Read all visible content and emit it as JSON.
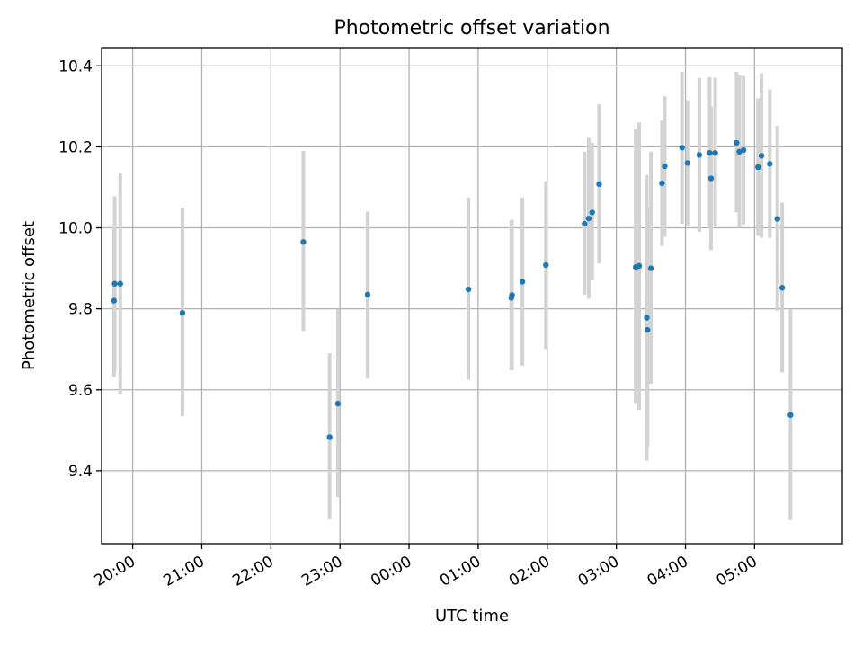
{
  "chart_data": {
    "type": "scatter",
    "title": "Photometric offset variation",
    "xlabel": "UTC time",
    "ylabel": "Photometric offset",
    "x_unit": "hours since 19:00 UTC",
    "xlim": [
      0.55,
      11.27
    ],
    "ylim": [
      9.22,
      10.445
    ],
    "x_ticks": [
      {
        "value": 1,
        "label": "20:00"
      },
      {
        "value": 2,
        "label": "21:00"
      },
      {
        "value": 3,
        "label": "22:00"
      },
      {
        "value": 4,
        "label": "23:00"
      },
      {
        "value": 5,
        "label": "00:00"
      },
      {
        "value": 6,
        "label": "01:00"
      },
      {
        "value": 7,
        "label": "02:00"
      },
      {
        "value": 8,
        "label": "03:00"
      },
      {
        "value": 9,
        "label": "04:00"
      },
      {
        "value": 10,
        "label": "05:00"
      }
    ],
    "y_ticks": [
      {
        "value": 9.4,
        "label": "9.4"
      },
      {
        "value": 9.6,
        "label": "9.6"
      },
      {
        "value": 9.8,
        "label": "9.8"
      },
      {
        "value": 10.0,
        "label": "10.0"
      },
      {
        "value": 10.2,
        "label": "10.2"
      },
      {
        "value": 10.4,
        "label": "10.4"
      }
    ],
    "grid": true,
    "point_color": "#1f77b4",
    "error_color": "#d3d3d3",
    "series": [
      {
        "name": "Photometric offset",
        "points": [
          {
            "x": 0.73,
            "y": 9.82,
            "lo": 9.632,
            "hi": 10.008
          },
          {
            "x": 0.74,
            "y": 9.862,
            "lo": 9.645,
            "hi": 10.078
          },
          {
            "x": 0.82,
            "y": 9.862,
            "lo": 9.59,
            "hi": 10.135
          },
          {
            "x": 1.72,
            "y": 9.79,
            "lo": 9.535,
            "hi": 10.05
          },
          {
            "x": 3.47,
            "y": 9.965,
            "lo": 9.745,
            "hi": 10.19
          },
          {
            "x": 3.85,
            "y": 9.483,
            "lo": 9.28,
            "hi": 9.69
          },
          {
            "x": 3.97,
            "y": 9.566,
            "lo": 9.335,
            "hi": 9.8
          },
          {
            "x": 4.4,
            "y": 9.835,
            "lo": 9.628,
            "hi": 10.04
          },
          {
            "x": 5.86,
            "y": 9.848,
            "lo": 9.625,
            "hi": 10.075
          },
          {
            "x": 6.48,
            "y": 9.827,
            "lo": 9.648,
            "hi": 10.018
          },
          {
            "x": 6.49,
            "y": 9.834,
            "lo": 9.648,
            "hi": 10.02
          },
          {
            "x": 6.64,
            "y": 9.867,
            "lo": 9.66,
            "hi": 10.075
          },
          {
            "x": 6.98,
            "y": 9.908,
            "lo": 9.7,
            "hi": 10.115
          },
          {
            "x": 7.54,
            "y": 10.01,
            "lo": 9.835,
            "hi": 10.188
          },
          {
            "x": 7.6,
            "y": 10.023,
            "lo": 9.825,
            "hi": 10.222
          },
          {
            "x": 7.65,
            "y": 10.038,
            "lo": 9.87,
            "hi": 10.21
          },
          {
            "x": 7.75,
            "y": 10.108,
            "lo": 9.912,
            "hi": 10.305
          },
          {
            "x": 8.28,
            "y": 9.903,
            "lo": 9.565,
            "hi": 10.243
          },
          {
            "x": 8.33,
            "y": 9.906,
            "lo": 9.55,
            "hi": 10.26
          },
          {
            "x": 8.44,
            "y": 9.778,
            "lo": 9.425,
            "hi": 10.13
          },
          {
            "x": 8.45,
            "y": 9.748,
            "lo": 9.46,
            "hi": 10.05
          },
          {
            "x": 8.5,
            "y": 9.9,
            "lo": 9.615,
            "hi": 10.188
          },
          {
            "x": 8.66,
            "y": 10.11,
            "lo": 9.955,
            "hi": 10.265
          },
          {
            "x": 8.7,
            "y": 10.152,
            "lo": 9.978,
            "hi": 10.325
          },
          {
            "x": 8.95,
            "y": 10.198,
            "lo": 10.01,
            "hi": 10.385
          },
          {
            "x": 9.03,
            "y": 10.16,
            "lo": 10.005,
            "hi": 10.315
          },
          {
            "x": 9.2,
            "y": 10.18,
            "lo": 9.99,
            "hi": 10.37
          },
          {
            "x": 9.35,
            "y": 10.185,
            "lo": 10.0,
            "hi": 10.372
          },
          {
            "x": 9.37,
            "y": 10.122,
            "lo": 9.945,
            "hi": 10.3
          },
          {
            "x": 9.43,
            "y": 10.185,
            "lo": 10.005,
            "hi": 10.37
          },
          {
            "x": 9.74,
            "y": 10.21,
            "lo": 10.038,
            "hi": 10.385
          },
          {
            "x": 9.78,
            "y": 10.188,
            "lo": 10.0,
            "hi": 10.377
          },
          {
            "x": 9.84,
            "y": 10.192,
            "lo": 10.008,
            "hi": 10.375
          },
          {
            "x": 10.05,
            "y": 10.15,
            "lo": 9.98,
            "hi": 10.32
          },
          {
            "x": 10.1,
            "y": 10.178,
            "lo": 9.975,
            "hi": 10.382
          },
          {
            "x": 10.22,
            "y": 10.158,
            "lo": 9.975,
            "hi": 10.342
          },
          {
            "x": 10.33,
            "y": 10.022,
            "lo": 9.795,
            "hi": 10.252
          },
          {
            "x": 10.4,
            "y": 9.852,
            "lo": 9.643,
            "hi": 10.062
          },
          {
            "x": 10.52,
            "y": 9.538,
            "lo": 9.278,
            "hi": 9.8
          }
        ]
      }
    ]
  }
}
